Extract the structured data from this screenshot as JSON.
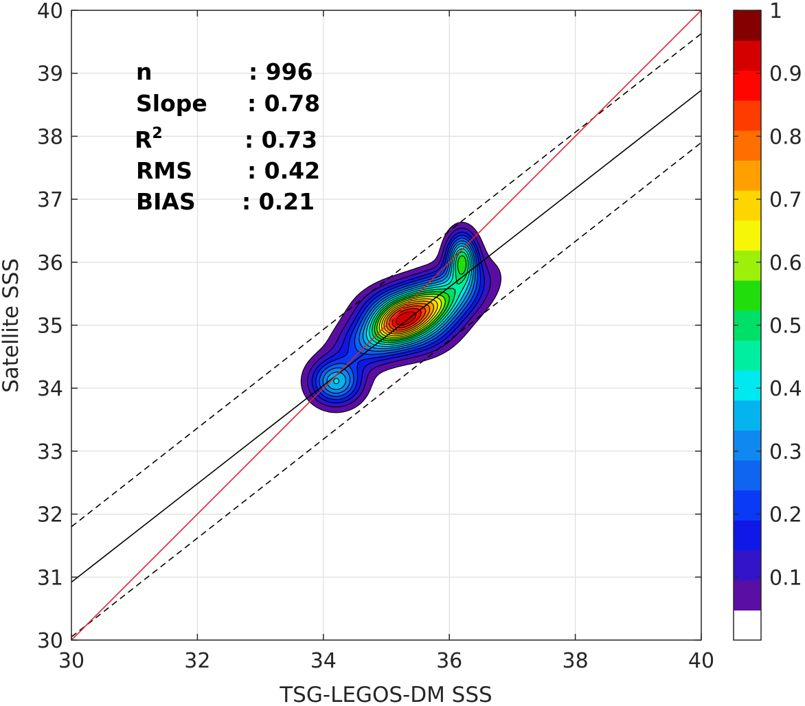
{
  "chart_data": {
    "type": "contour",
    "xlabel": "TSG-LEGOS-DM SSS",
    "ylabel": "Satellite SSS",
    "xlim": [
      30,
      40
    ],
    "ylim": [
      30,
      40
    ],
    "xticks": [
      "30",
      "32",
      "34",
      "36",
      "38",
      "40"
    ],
    "yticks": [
      "30",
      "31",
      "32",
      "33",
      "34",
      "35",
      "36",
      "37",
      "38",
      "39",
      "40"
    ],
    "grid": true,
    "stats": [
      {
        "label": "n",
        "value": ": 996"
      },
      {
        "label": "Slope",
        "value": ": 0.78"
      },
      {
        "label": "R",
        "sup": "2",
        "value": ": 0.73"
      },
      {
        "label": "RMS",
        "value": ": 0.42"
      },
      {
        "label": "BIAS",
        "value": ": 0.21"
      }
    ],
    "lines": {
      "identity": {
        "color": "#d9262b",
        "points": [
          [
            30,
            30
          ],
          [
            40,
            40
          ]
        ]
      },
      "regression": {
        "color": "#000000",
        "points": [
          [
            30,
            30.92
          ],
          [
            40,
            38.73
          ]
        ]
      },
      "upper_bound": {
        "color": "#000000",
        "dash": true,
        "points": [
          [
            30,
            31.8
          ],
          [
            40,
            39.63
          ]
        ]
      },
      "lower_bound": {
        "color": "#000000",
        "dash": true,
        "points": [
          [
            30,
            30.05
          ],
          [
            40,
            37.9
          ]
        ]
      }
    },
    "density_blobs": [
      {
        "cx": 35.5,
        "cy": 35.2,
        "sx": 0.62,
        "sy": 0.27,
        "angle": 28,
        "amp": 1.0
      },
      {
        "cx": 36.2,
        "cy": 36.05,
        "sx": 0.16,
        "sy": 0.27,
        "angle": 0,
        "amp": 0.66
      },
      {
        "cx": 34.2,
        "cy": 34.1,
        "sx": 0.27,
        "sy": 0.24,
        "angle": 0,
        "amp": 0.5
      },
      {
        "cx": 35.15,
        "cy": 35.05,
        "sx": 0.3,
        "sy": 0.22,
        "angle": 25,
        "amp": 0.35
      },
      {
        "cx": 34.95,
        "cy": 35.4,
        "sx": 0.35,
        "sy": 0.2,
        "angle": 20,
        "amp": 0.12
      },
      {
        "cx": 35.7,
        "cy": 34.8,
        "sx": 0.35,
        "sy": 0.22,
        "angle": 20,
        "amp": 0.12
      },
      {
        "cx": 34.6,
        "cy": 34.65,
        "sx": 0.3,
        "sy": 0.25,
        "angle": 0,
        "amp": 0.1
      }
    ],
    "contour_levels": [
      0.05,
      0.1,
      0.15,
      0.2,
      0.25,
      0.3,
      0.35,
      0.4,
      0.45,
      0.5,
      0.55,
      0.6,
      0.65,
      0.7,
      0.75,
      0.8,
      0.85,
      0.9,
      0.95
    ],
    "colormap": [
      "#ffffff",
      "#5b0ea3",
      "#3314c8",
      "#0f18e6",
      "#0a3af5",
      "#0f64f0",
      "#0f88f0",
      "#05b4ef",
      "#00e8f0",
      "#00eea0",
      "#00e066",
      "#22dd0c",
      "#9cf00a",
      "#f6f608",
      "#ffd500",
      "#ffa000",
      "#ff6e00",
      "#ff3c00",
      "#ff0500",
      "#d40000",
      "#850000"
    ],
    "colorbar": {
      "range": [
        0,
        1
      ],
      "ticks": [
        {
          "value": 0.1,
          "label": "0.1"
        },
        {
          "value": 0.2,
          "label": "0.2"
        },
        {
          "value": 0.3,
          "label": "0.3"
        },
        {
          "value": 0.4,
          "label": "0.4"
        },
        {
          "value": 0.5,
          "label": "0.5"
        },
        {
          "value": 0.6,
          "label": "0.6"
        },
        {
          "value": 0.7,
          "label": "0.7"
        },
        {
          "value": 0.8,
          "label": "0.8"
        },
        {
          "value": 0.9,
          "label": "0.9"
        },
        {
          "value": 1,
          "label": "1"
        }
      ]
    }
  }
}
